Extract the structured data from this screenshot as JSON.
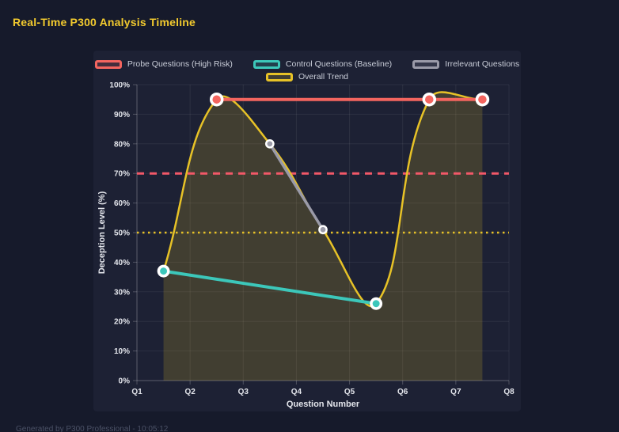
{
  "page": {
    "title": "Real-Time P300 Analysis Timeline",
    "footer": "Generated by P300 Professional - 10:05:12"
  },
  "colors": {
    "page_background": "#161a2b",
    "panel_background": "#1d2134",
    "title_text": "#f2ca2e",
    "tick_text": "#e4e6ec",
    "legend_text": "#c9cdd8",
    "grid": "rgba(255,255,255,0.07)",
    "axis_border": "rgba(255,255,255,0.22)",
    "point_border": "#ffffff",
    "footer_text": "#4b5166"
  },
  "chart_data": {
    "type": "line",
    "title": "Real-Time P300 Analysis Timeline",
    "xlabel": "Question Number",
    "ylabel": "Deception Level (%)",
    "x_tick_labels": [
      "Q1",
      "Q2",
      "Q3",
      "Q4",
      "Q5",
      "Q6",
      "Q7",
      "Q8"
    ],
    "y_tick_labels": [
      "0%",
      "10%",
      "20%",
      "30%",
      "40%",
      "50%",
      "60%",
      "70%",
      "80%",
      "90%",
      "100%"
    ],
    "xlim": [
      1,
      8
    ],
    "ylim": [
      0,
      100
    ],
    "grid": true,
    "legend_position": "top",
    "series": [
      {
        "name": "Probe Questions (High Risk)",
        "color": "#f4655f",
        "smooth": false,
        "fill": false,
        "points": [
          {
            "x": 2.5,
            "y": 95
          },
          {
            "x": 6.5,
            "y": 95
          },
          {
            "x": 7.5,
            "y": 95
          }
        ]
      },
      {
        "name": "Control Questions (Baseline)",
        "color": "#3cc7ba",
        "smooth": false,
        "fill": false,
        "points": [
          {
            "x": 1.5,
            "y": 37
          },
          {
            "x": 5.5,
            "y": 26
          }
        ]
      },
      {
        "name": "Irrelevant Questions",
        "color": "#9a9aa8",
        "smooth": false,
        "fill": false,
        "points": [
          {
            "x": 3.5,
            "y": 80
          },
          {
            "x": 4.5,
            "y": 51
          }
        ]
      },
      {
        "name": "Overall Trend",
        "color": "#e7c227",
        "smooth": true,
        "fill": true,
        "points": [
          {
            "x": 1.5,
            "y": 37
          },
          {
            "x": 2.5,
            "y": 95
          },
          {
            "x": 3.5,
            "y": 80
          },
          {
            "x": 4.5,
            "y": 51
          },
          {
            "x": 5.5,
            "y": 26
          },
          {
            "x": 6.5,
            "y": 95
          },
          {
            "x": 7.5,
            "y": 95
          }
        ]
      }
    ],
    "annotations": [
      {
        "type": "hline",
        "y": 70,
        "style": "dashed",
        "color": "#f25868"
      },
      {
        "type": "hline",
        "y": 50,
        "style": "dotted",
        "color": "#e7c227"
      }
    ]
  }
}
